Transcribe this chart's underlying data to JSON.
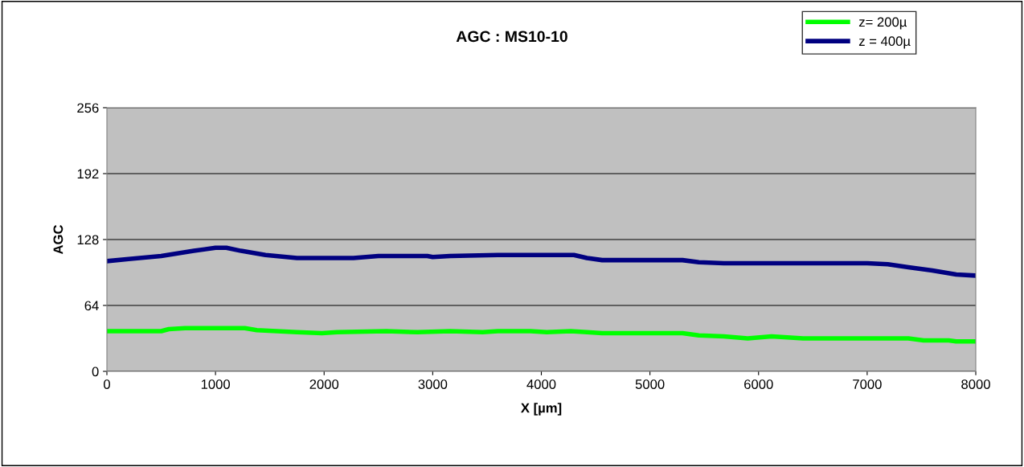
{
  "chart_data": {
    "type": "line",
    "title": "AGC : MS10-10",
    "xlabel": "X [µm]",
    "ylabel": "AGC",
    "xlim": [
      0,
      8000
    ],
    "xticks": [
      0,
      1000,
      2000,
      3000,
      4000,
      5000,
      6000,
      7000,
      8000
    ],
    "ylim": [
      0,
      256
    ],
    "yticks": [
      0,
      64,
      128,
      192,
      256
    ],
    "grid": "y",
    "legend": "top right",
    "marker": "none",
    "line_style": "solid",
    "series": [
      {
        "name": "z= 200µ",
        "color": "#00ff00",
        "x": [
          0,
          500,
          570,
          720,
          1270,
          1380,
          1750,
          1980,
          2120,
          2570,
          2860,
          3160,
          3460,
          3600,
          3900,
          4050,
          4270,
          4420,
          4560,
          5300,
          5450,
          5680,
          5900,
          6120,
          6410,
          7380,
          7520,
          7750,
          7820,
          8000
        ],
        "values": [
          39,
          39,
          41,
          42,
          42,
          40,
          38,
          37,
          38,
          39,
          38,
          39,
          38,
          39,
          39,
          38,
          39,
          38,
          37,
          37,
          35,
          34,
          32,
          34,
          32,
          32,
          30,
          30,
          29,
          29
        ]
      },
      {
        "name": "z = 400µ",
        "color": "#000080",
        "x": [
          0,
          200,
          500,
          800,
          1000,
          1100,
          1235,
          1460,
          1750,
          2270,
          2500,
          2950,
          3000,
          3160,
          3600,
          4300,
          4420,
          4560,
          5300,
          5450,
          5680,
          7000,
          7190,
          7380,
          7600,
          7820,
          8000
        ],
        "values": [
          107,
          109,
          112,
          117,
          120,
          120,
          117,
          113,
          110,
          110,
          112,
          112,
          111,
          112,
          113,
          113,
          110,
          108,
          108,
          106,
          105,
          105,
          104,
          101,
          98,
          94,
          93
        ]
      }
    ]
  }
}
